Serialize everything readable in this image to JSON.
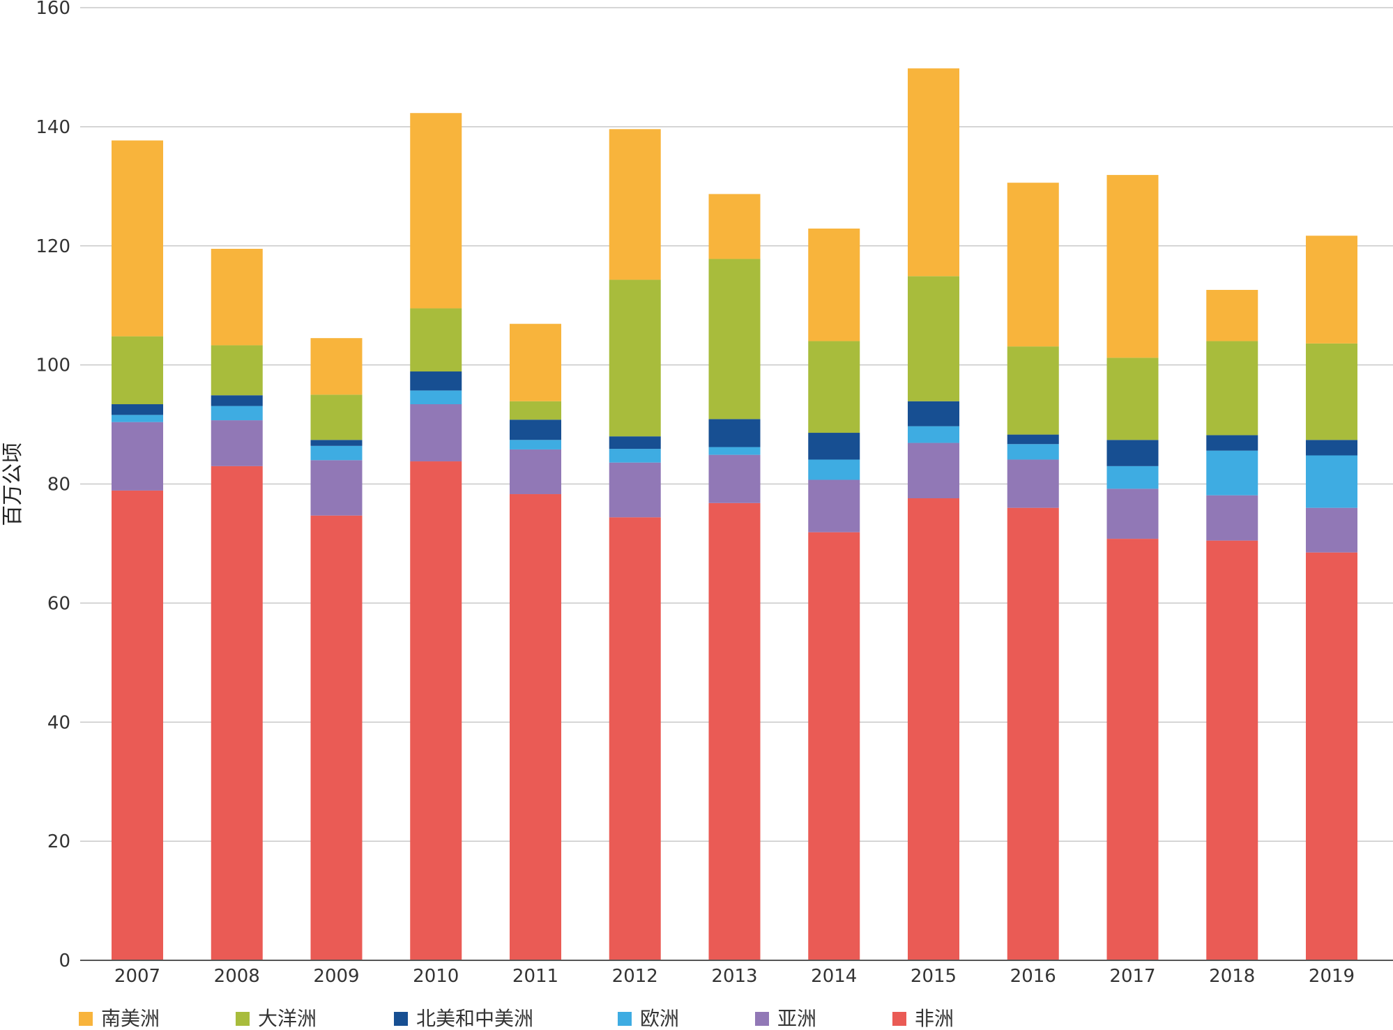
{
  "chart_data": {
    "type": "bar",
    "stacked": true,
    "ylabel": "百万公顷",
    "ylim": [
      0,
      160
    ],
    "yticks": [
      0,
      20,
      40,
      60,
      80,
      100,
      120,
      140,
      160
    ],
    "grid": true,
    "legend_position": "bottom",
    "categories": [
      "2007",
      "2008",
      "2009",
      "2010",
      "2011",
      "2012",
      "2013",
      "2014",
      "2015",
      "2016",
      "2017",
      "2018",
      "2019"
    ],
    "series": [
      {
        "name": "非洲",
        "color": "#ea5b55",
        "values": [
          78.9,
          83.0,
          74.7,
          83.8,
          78.3,
          74.4,
          76.8,
          71.9,
          77.6,
          76.0,
          70.8,
          70.5,
          68.5
        ]
      },
      {
        "name": "亚洲",
        "color": "#9178b6",
        "values": [
          11.5,
          7.7,
          9.3,
          9.6,
          7.5,
          9.2,
          8.1,
          8.8,
          9.3,
          8.1,
          8.4,
          7.6,
          7.5
        ]
      },
      {
        "name": "欧洲",
        "color": "#3eace2",
        "values": [
          1.2,
          2.4,
          2.4,
          2.3,
          1.6,
          2.3,
          1.3,
          3.4,
          2.8,
          2.6,
          3.8,
          7.5,
          8.8
        ]
      },
      {
        "name": "北美和中美洲",
        "color": "#174f92",
        "values": [
          1.8,
          1.8,
          1.0,
          3.2,
          3.4,
          2.1,
          4.7,
          4.5,
          4.2,
          1.6,
          4.4,
          2.6,
          2.6
        ]
      },
      {
        "name": "大洋洲",
        "color": "#a8bc3c",
        "values": [
          11.4,
          8.4,
          7.6,
          10.6,
          3.1,
          26.3,
          26.9,
          15.4,
          21.0,
          14.8,
          13.8,
          15.8,
          16.2
        ]
      },
      {
        "name": "南美洲",
        "color": "#f8b43c",
        "values": [
          32.9,
          16.2,
          9.5,
          32.8,
          13.0,
          25.3,
          10.9,
          18.9,
          34.9,
          27.5,
          30.7,
          8.6,
          18.1
        ]
      }
    ]
  },
  "legend": [
    {
      "label": "南美洲",
      "color": "#f8b43c"
    },
    {
      "label": "大洋洲",
      "color": "#a8bc3c"
    },
    {
      "label": "北美和中美洲",
      "color": "#174f92"
    },
    {
      "label": "欧洲",
      "color": "#3eace2"
    },
    {
      "label": "亚洲",
      "color": "#9178b6"
    },
    {
      "label": "非洲",
      "color": "#ea5b55"
    }
  ]
}
